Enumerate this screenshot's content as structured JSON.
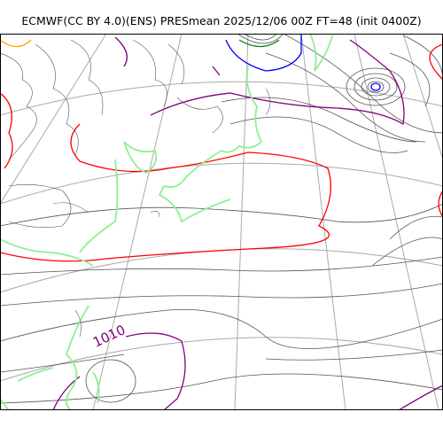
{
  "title": "ECMWF(CC BY 4.0)(ENS) PRESmean 2025/12/06 00Z FT=48 (init 0400Z)",
  "isobar_label": "1010",
  "colors": {
    "frame": "#000000",
    "graticule": "#aaaaaa",
    "coastline": "#90ee90",
    "isobar_thin": "#555555",
    "isobar_1010": "#ff0000",
    "isobar_1015": "#800080",
    "isobar_1020": "#0000ff",
    "isobar_1025": "#008000",
    "isobar_high": "#ffa500"
  },
  "icons": [
    "map-plot"
  ]
}
